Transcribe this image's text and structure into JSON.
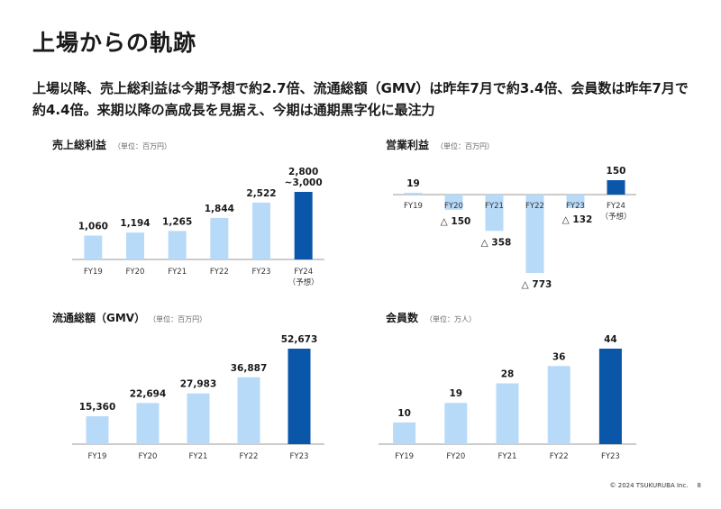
{
  "page": {
    "title": "上場からの軌跡",
    "lead": "上場以降、売上総利益は今期予想で約2.7倍、流通総額（GMV）は昨年7月で約3.4倍、会員数は昨年7月で約4.4倍。来期以降の高成長を見据え、今期は通期黒字化に最注力",
    "copyright": "© 2024 TSUKURUBA Inc.",
    "page_number": "8"
  },
  "colors": {
    "light_bar": "#b8daf9",
    "dark_bar": "#0a56a8",
    "axis": "#9a9a9a"
  },
  "chart_data": [
    {
      "id": "gross-profit",
      "type": "bar",
      "title": "売上総利益",
      "unit": "（単位：百万円）",
      "categories": [
        "FY19",
        "FY20",
        "FY21",
        "FY22",
        "FY23",
        "FY24"
      ],
      "category_notes": [
        "",
        "",
        "",
        "",
        "",
        "（予想）"
      ],
      "values": [
        1060,
        1194,
        1265,
        1844,
        2522,
        3000
      ],
      "value_labels": [
        "1,060",
        "1,194",
        "1,265",
        "1,844",
        "2,522",
        "2,800\n~3,000"
      ],
      "highlight_index": 5,
      "ylim": [
        0,
        3000
      ]
    },
    {
      "id": "operating-profit",
      "type": "bar",
      "title": "営業利益",
      "unit": "（単位：百万円）",
      "categories": [
        "FY19",
        "FY20",
        "FY21",
        "FY22",
        "FY23",
        "FY24"
      ],
      "category_notes": [
        "",
        "",
        "",
        "",
        "",
        "（予想）"
      ],
      "values": [
        19,
        -150,
        -358,
        -773,
        -132,
        150
      ],
      "value_labels": [
        "19",
        "△ 150",
        "△ 358",
        "△ 773",
        "△ 132",
        "150"
      ],
      "highlight_index": 5,
      "ylim": [
        -773,
        150
      ]
    },
    {
      "id": "gmv",
      "type": "bar",
      "title": "流通総額（GMV）",
      "unit": "（単位：百万円）",
      "categories": [
        "FY19",
        "FY20",
        "FY21",
        "FY22",
        "FY23"
      ],
      "category_notes": [
        "",
        "",
        "",
        "",
        ""
      ],
      "values": [
        15360,
        22694,
        27983,
        36887,
        52673
      ],
      "value_labels": [
        "15,360",
        "22,694",
        "27,983",
        "36,887",
        "52,673"
      ],
      "highlight_index": 4,
      "ylim": [
        0,
        52673
      ]
    },
    {
      "id": "members",
      "type": "bar",
      "title": "会員数",
      "unit": "（単位：万人）",
      "categories": [
        "FY19",
        "FY20",
        "FY21",
        "FY22",
        "FY23"
      ],
      "category_notes": [
        "",
        "",
        "",
        "",
        ""
      ],
      "values": [
        10,
        19,
        28,
        36,
        44
      ],
      "value_labels": [
        "10",
        "19",
        "28",
        "36",
        "44"
      ],
      "highlight_index": 4,
      "ylim": [
        0,
        44
      ]
    }
  ]
}
